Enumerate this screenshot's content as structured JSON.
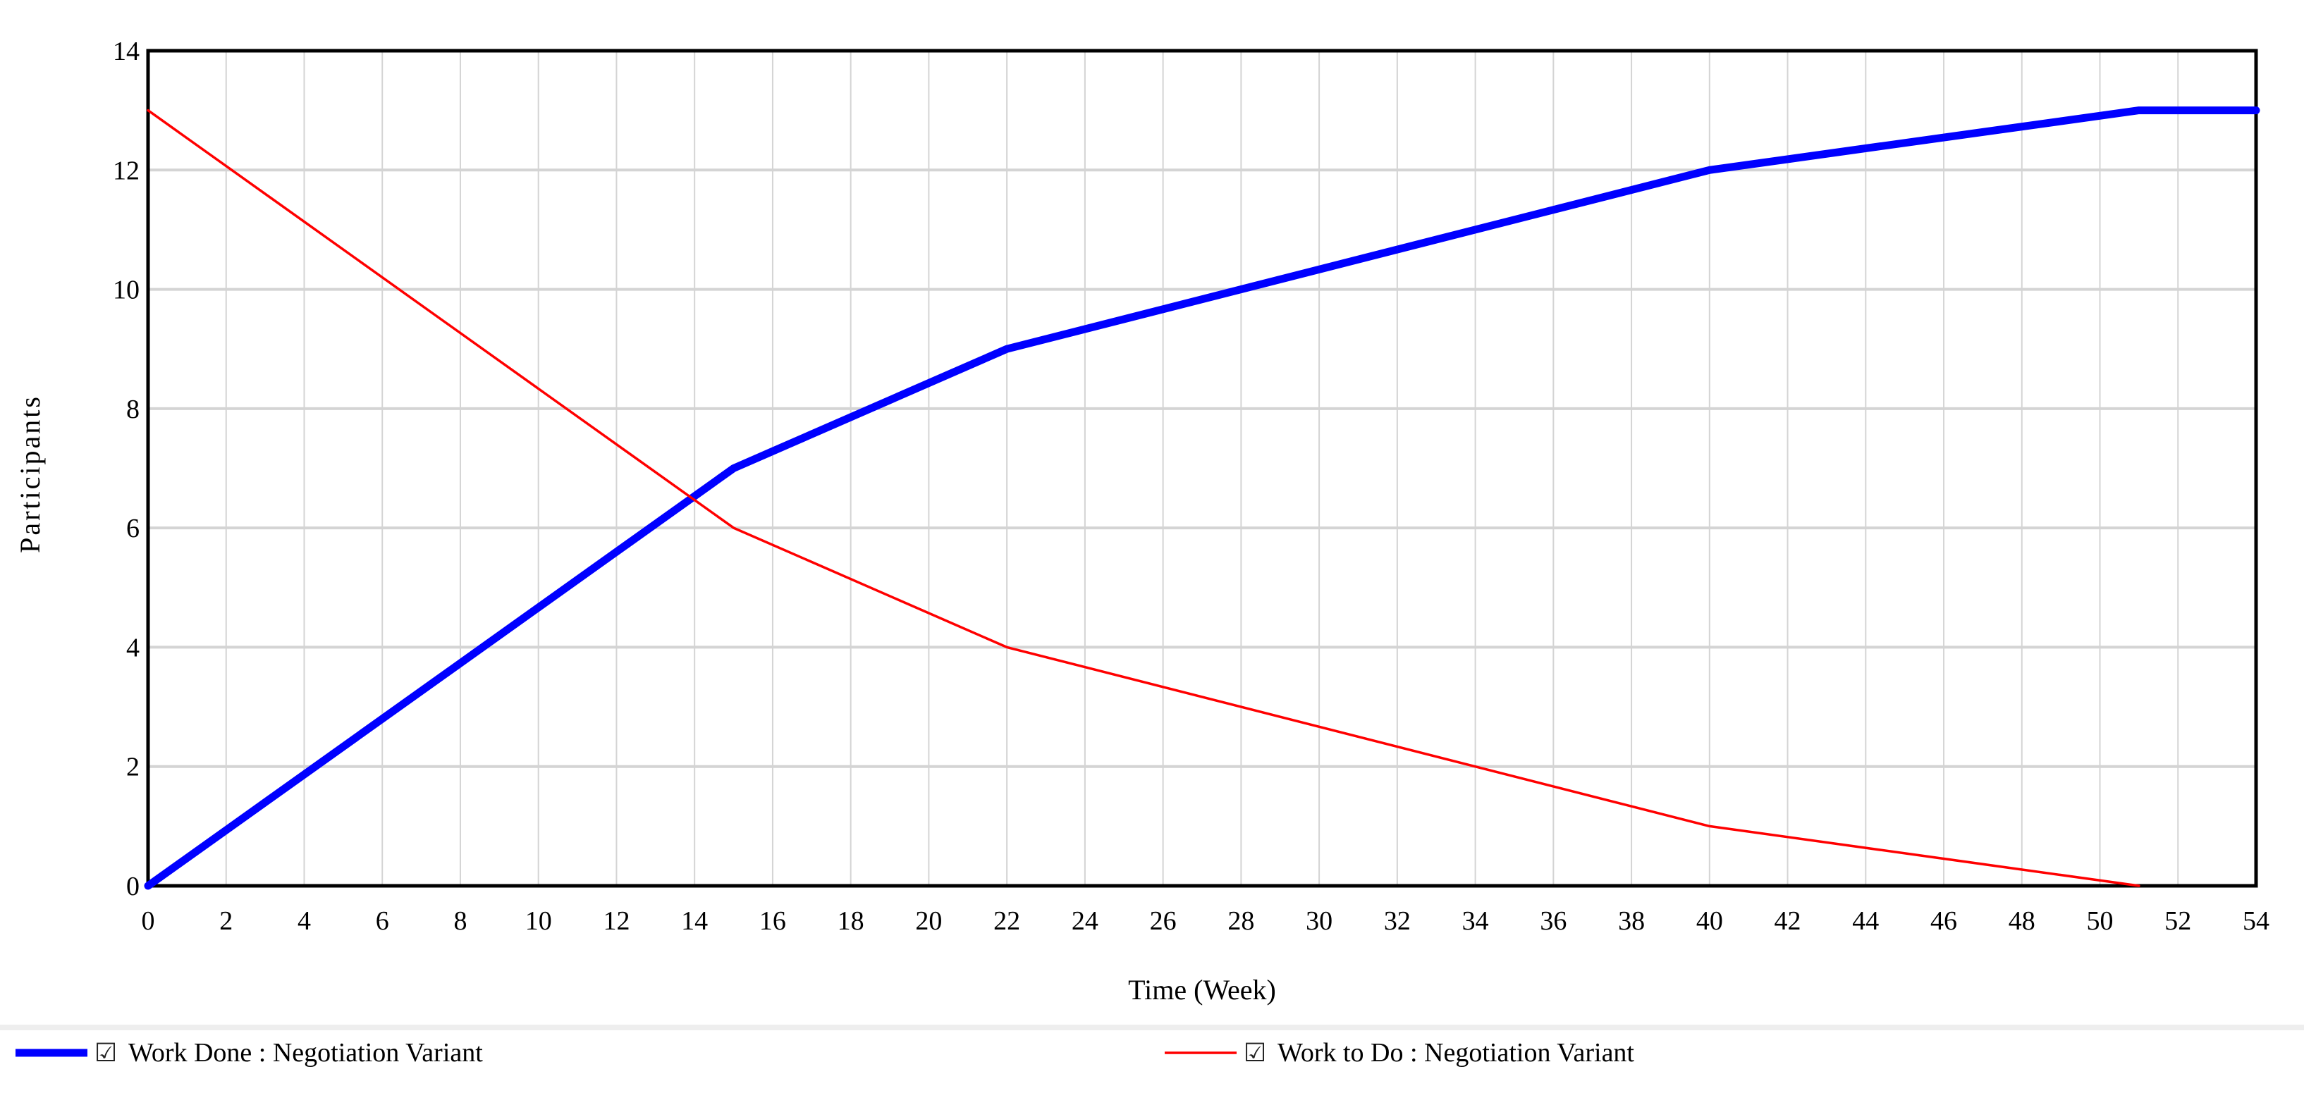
{
  "chart_data": {
    "type": "line",
    "title": "",
    "xlabel": "Time (Week)",
    "ylabel": "Participants",
    "xlim": [
      0,
      54
    ],
    "ylim": [
      0,
      14
    ],
    "x_ticks": [
      0,
      2,
      4,
      6,
      8,
      10,
      12,
      14,
      16,
      18,
      20,
      22,
      24,
      26,
      28,
      30,
      32,
      34,
      36,
      38,
      40,
      42,
      44,
      46,
      48,
      50,
      52,
      54
    ],
    "y_ticks": [
      0,
      2,
      4,
      6,
      8,
      10,
      12,
      14
    ],
    "grid": true,
    "legend_position": "bottom",
    "series": [
      {
        "name": "Work Done : Negotiation Variant",
        "color": "#0000ff",
        "line_style": "thick",
        "checked": true,
        "points": [
          [
            0,
            0
          ],
          [
            15,
            7
          ],
          [
            22,
            9
          ],
          [
            40,
            12
          ],
          [
            51,
            13
          ],
          [
            54,
            13
          ]
        ]
      },
      {
        "name": "Work to Do : Negotiation Variant",
        "color": "#ff0000",
        "line_style": "thin",
        "checked": true,
        "points": [
          [
            0,
            13
          ],
          [
            15,
            6
          ],
          [
            22,
            4
          ],
          [
            40,
            1
          ],
          [
            51,
            0
          ]
        ]
      }
    ]
  },
  "legend": {
    "checkbox_glyph": "☑"
  }
}
